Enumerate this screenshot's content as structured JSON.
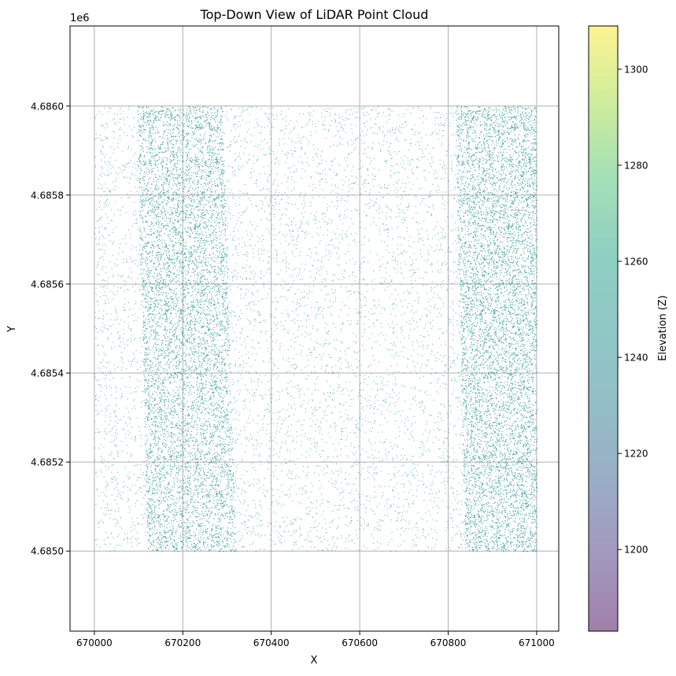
{
  "chart_data": {
    "type": "scatter",
    "title": "Top-Down View of LiDAR Point Cloud",
    "xlabel": "X",
    "ylabel": "Y",
    "y_offset_label": "1e6",
    "xlim": [
      669945,
      671050
    ],
    "ylim": [
      4.68482,
      4.68618
    ],
    "x_ticks": [
      670000,
      670200,
      670400,
      670600,
      670800,
      671000
    ],
    "x_tick_labels": [
      "670000",
      "670200",
      "670400",
      "670600",
      "670800",
      "671000"
    ],
    "y_ticks": [
      4.685,
      4.6852,
      4.6854,
      4.6856,
      4.6858,
      4.686
    ],
    "y_tick_labels": [
      "4.6850",
      "4.6852",
      "4.6854",
      "4.6856",
      "4.6858",
      "4.6860"
    ],
    "grid": true,
    "point_cloud": {
      "x_range": [
        670000,
        671000
      ],
      "y_range": [
        4.685,
        4.686
      ],
      "dense_bands": [
        {
          "x_left_at_top": 670095,
          "x_right_at_top": 670290,
          "x_left_at_bottom": 670120,
          "x_right_at_bottom": 670320
        },
        {
          "x_left_at_top": 670815,
          "x_right_at_top": 671000,
          "x_left_at_bottom": 670838,
          "x_right_at_bottom": 671000
        }
      ],
      "point_color": "#20908d",
      "point_alpha": 0.5
    },
    "colorbar": {
      "label": "Elevation (Z)",
      "colormap": "viridis",
      "alpha": 0.5,
      "range": [
        1183,
        1309
      ],
      "ticks": [
        1200,
        1220,
        1240,
        1260,
        1280,
        1300
      ],
      "tick_labels": [
        "1200",
        "1220",
        "1240",
        "1260",
        "1280",
        "1300"
      ]
    }
  }
}
